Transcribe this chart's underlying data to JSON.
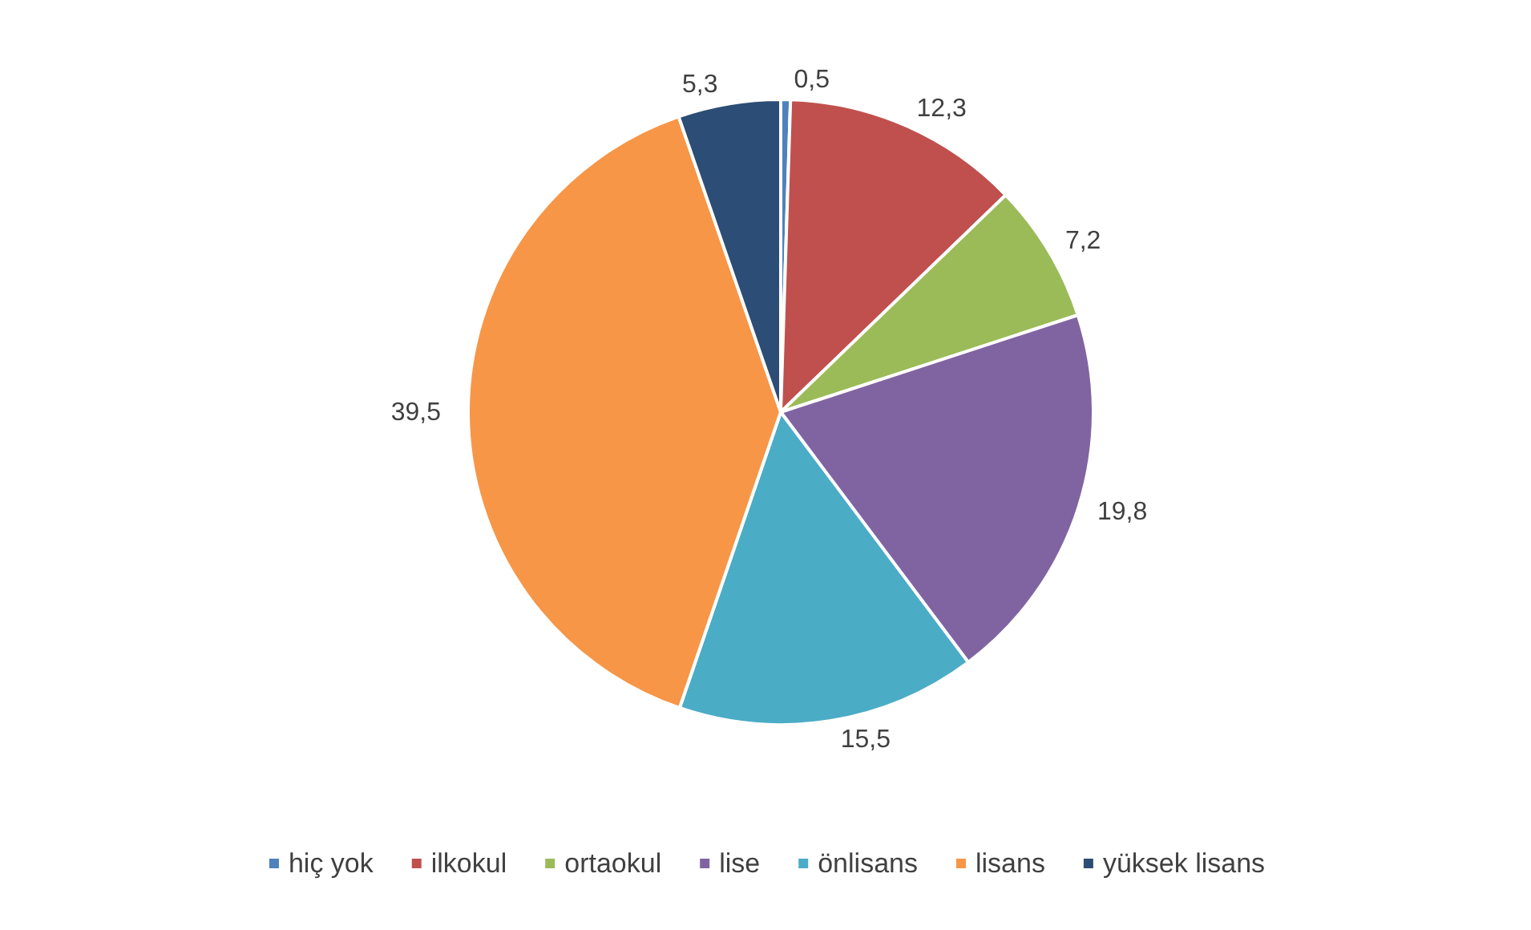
{
  "chart_data": {
    "type": "pie",
    "categories": [
      "hiç yok",
      "ilkokul",
      "ortaokul",
      "lise",
      "önlisans",
      "lisans",
      "yüksek lisans"
    ],
    "values": [
      0.5,
      12.3,
      7.2,
      19.8,
      15.5,
      39.5,
      5.3
    ],
    "value_labels": [
      "0,5",
      "12,3",
      "7,2",
      "19,8",
      "15,5",
      "39,5",
      "5,3"
    ],
    "colors": [
      "#4f81bd",
      "#c0504d",
      "#9bbb59",
      "#8064a2",
      "#4bacc6",
      "#f79646",
      "#2c4d75"
    ],
    "legend": "bottom"
  }
}
